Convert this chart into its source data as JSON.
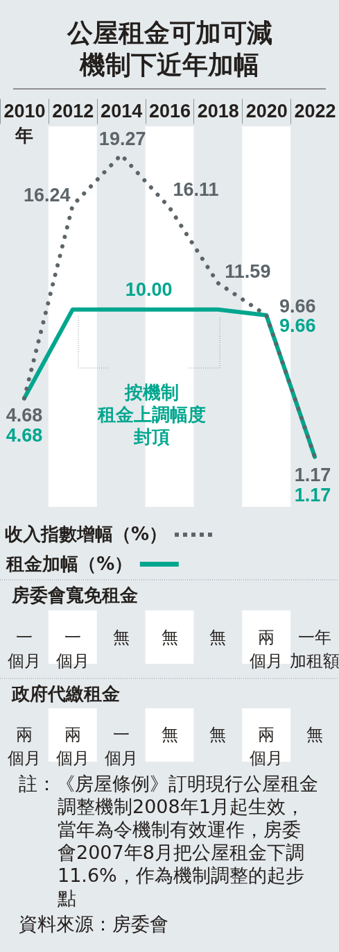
{
  "chart_data": {
    "type": "line",
    "title": "公屋租金可加可減機制下近年加幅",
    "xlabel": "年",
    "categories": [
      "2010",
      "2012",
      "2014",
      "2016",
      "2018",
      "2020",
      "2022"
    ],
    "series": [
      {
        "name": "收入指數增幅（%）",
        "color": "#5c6569",
        "line_style": "dotted",
        "values": [
          4.68,
          16.24,
          19.27,
          16.11,
          11.59,
          9.66,
          1.17
        ],
        "value_labels": [
          "4.68",
          "16.24",
          "19.27",
          "16.11",
          "11.59",
          "9.66",
          "1.17"
        ]
      },
      {
        "name": "租金加幅（%）",
        "color": "#00a68e",
        "line_style": "solid",
        "values": [
          4.68,
          10.0,
          10.0,
          10.0,
          10.0,
          9.66,
          1.17
        ],
        "value_labels": [
          "4.68",
          null,
          "10.00",
          null,
          null,
          "9.66",
          "1.17"
        ]
      }
    ],
    "bands": [
      {
        "axis": "x",
        "from": "2012",
        "to": "2012",
        "color": "#ffffff"
      },
      {
        "axis": "x",
        "from": "2016",
        "to": "2016",
        "color": "#ffffff"
      },
      {
        "axis": "x",
        "from": "2020",
        "to": "2020",
        "color": "#ffffff"
      }
    ],
    "legend": "bottom",
    "tick_labels": "x",
    "annotations": [
      "按機制租金上調幅度封頂",
      "房委會寬免租金",
      "一個月",
      "一個月",
      "無",
      "無",
      "無",
      "兩個月",
      "一年加租額",
      "政府代繳租金",
      "兩個月",
      "兩個月",
      "一個月",
      "無",
      "無",
      "兩個月",
      "無",
      "註：《房屋條例》訂明現行公屋租金調整機制2008年1月起生效，當年為令機制有效運作，房委會2007年8月把公屋租金下調11.6%，作為機制調整的起步點",
      "資料來源：房委會"
    ]
  }
}
